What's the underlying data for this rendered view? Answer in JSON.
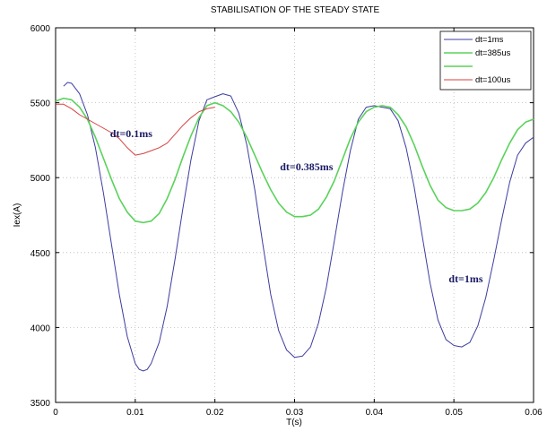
{
  "chart_data": {
    "type": "line",
    "title": "STABILISATION OF THE STEADY STATE",
    "xlabel": "T(s)",
    "ylabel": "Iex(A)",
    "xlim": [
      0,
      0.06
    ],
    "ylim": [
      3500,
      6000
    ],
    "x_ticks": [
      "0",
      "0.01",
      "0.02",
      "0.03",
      "0.04",
      "0.05",
      "0.06"
    ],
    "y_ticks": [
      "3500",
      "4000",
      "4500",
      "5000",
      "5500",
      "6000"
    ],
    "grid": true,
    "legend_position": "top-right",
    "legend": [
      "dt=1ms",
      "dt=385us",
      "",
      "dt=100us"
    ],
    "series": [
      {
        "name": "dt=1ms",
        "color": "#3c3ca0",
        "x": [
          0.001,
          0.0015,
          0.002,
          0.003,
          0.004,
          0.005,
          0.006,
          0.007,
          0.008,
          0.009,
          0.01,
          0.0105,
          0.011,
          0.0115,
          0.012,
          0.013,
          0.014,
          0.015,
          0.016,
          0.017,
          0.018,
          0.019,
          0.02,
          0.021,
          0.022,
          0.023,
          0.024,
          0.025,
          0.026,
          0.027,
          0.028,
          0.029,
          0.03,
          0.031,
          0.032,
          0.033,
          0.034,
          0.035,
          0.036,
          0.037,
          0.038,
          0.039,
          0.04,
          0.041,
          0.042,
          0.043,
          0.044,
          0.045,
          0.046,
          0.047,
          0.048,
          0.049,
          0.05,
          0.051,
          0.052,
          0.053,
          0.054,
          0.055,
          0.056,
          0.057,
          0.058,
          0.059,
          0.06
        ],
        "values": [
          5610,
          5635,
          5630,
          5560,
          5420,
          5200,
          4900,
          4560,
          4220,
          3940,
          3760,
          3720,
          3710,
          3720,
          3760,
          3900,
          4140,
          4460,
          4800,
          5120,
          5380,
          5520,
          5540,
          5560,
          5545,
          5430,
          5220,
          4920,
          4560,
          4220,
          3980,
          3850,
          3800,
          3810,
          3870,
          4030,
          4270,
          4580,
          4900,
          5180,
          5390,
          5470,
          5480,
          5470,
          5460,
          5380,
          5200,
          4940,
          4620,
          4300,
          4050,
          3920,
          3880,
          3870,
          3900,
          4010,
          4200,
          4450,
          4720,
          4970,
          5150,
          5230,
          5270
        ]
      },
      {
        "name": "dt=385us",
        "color": "#5ad25a",
        "x": [
          0.0,
          0.001,
          0.002,
          0.003,
          0.004,
          0.005,
          0.006,
          0.007,
          0.008,
          0.009,
          0.01,
          0.011,
          0.012,
          0.013,
          0.014,
          0.015,
          0.016,
          0.017,
          0.018,
          0.019,
          0.02,
          0.021,
          0.022,
          0.023,
          0.024,
          0.025,
          0.026,
          0.027,
          0.028,
          0.029,
          0.03,
          0.031,
          0.032,
          0.033,
          0.034,
          0.035,
          0.036,
          0.037,
          0.038,
          0.039,
          0.04,
          0.041,
          0.042,
          0.043,
          0.044,
          0.045,
          0.046,
          0.047,
          0.048,
          0.049,
          0.05,
          0.051,
          0.052,
          0.053,
          0.054,
          0.055,
          0.056,
          0.057,
          0.058,
          0.059,
          0.06
        ],
        "values": [
          5510,
          5530,
          5520,
          5470,
          5390,
          5270,
          5130,
          4990,
          4860,
          4770,
          4710,
          4700,
          4710,
          4760,
          4860,
          4990,
          5140,
          5280,
          5400,
          5480,
          5500,
          5480,
          5440,
          5370,
          5270,
          5150,
          5030,
          4920,
          4830,
          4770,
          4740,
          4740,
          4750,
          4790,
          4870,
          4980,
          5120,
          5260,
          5370,
          5440,
          5470,
          5480,
          5470,
          5420,
          5340,
          5220,
          5080,
          4950,
          4850,
          4800,
          4780,
          4780,
          4790,
          4830,
          4900,
          5000,
          5120,
          5230,
          5320,
          5370,
          5390
        ]
      },
      {
        "name": "dt=100us",
        "color": "#d84040",
        "x": [
          0.0,
          0.001,
          0.002,
          0.003,
          0.004,
          0.005,
          0.006,
          0.007,
          0.008,
          0.009,
          0.01,
          0.011,
          0.012,
          0.013,
          0.014,
          0.015,
          0.016,
          0.017,
          0.018,
          0.019,
          0.02
        ],
        "values": [
          5490,
          5490,
          5460,
          5420,
          5390,
          5360,
          5330,
          5300,
          5260,
          5200,
          5150,
          5160,
          5180,
          5200,
          5230,
          5290,
          5350,
          5400,
          5440,
          5460,
          5470
        ]
      }
    ],
    "annotations": [
      {
        "text": "dt=0.1ms",
        "x": 0.0095,
        "y": 5270
      },
      {
        "text": "dt=0.385ms",
        "x": 0.0315,
        "y": 5050
      },
      {
        "text": "dt=1ms",
        "x": 0.0515,
        "y": 4300
      }
    ]
  }
}
